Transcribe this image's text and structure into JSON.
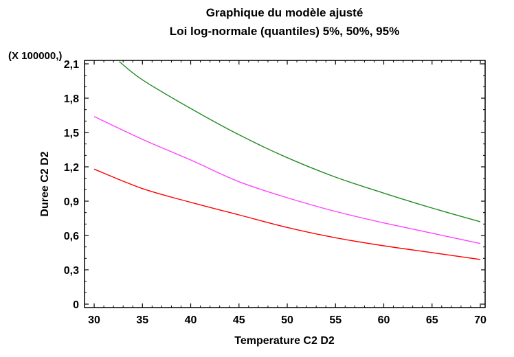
{
  "chart_data": {
    "type": "line",
    "title": "Graphique du modèle ajusté",
    "subtitle": "Loi log-normale (quantiles) 5%,  50%,  95%",
    "xlabel": "Temperature C2 D2",
    "ylabel": "Duree C2 D2",
    "y_multiplier_label": "(X 100000,)",
    "xlim": [
      29,
      70.5
    ],
    "ylim": [
      -0.03,
      2.13
    ],
    "x_ticks": [
      30,
      35,
      40,
      45,
      50,
      55,
      60,
      65,
      70
    ],
    "x_tick_labels": [
      "30",
      "35",
      "40",
      "45",
      "50",
      "55",
      "60",
      "65",
      "70"
    ],
    "y_ticks": [
      0,
      0.3,
      0.6,
      0.9,
      1.2,
      1.5,
      1.8,
      2.1
    ],
    "y_tick_labels": [
      "0",
      "0,3",
      "0,6",
      "0,9",
      "1,2",
      "1,5",
      "1,8",
      "2,1"
    ],
    "grid": false,
    "legend": "none",
    "series": [
      {
        "color": "#228b22",
        "x": [
          32.6,
          35,
          40,
          45,
          50,
          55,
          60,
          65,
          70
        ],
        "y": [
          2.12,
          1.96,
          1.71,
          1.48,
          1.28,
          1.11,
          0.97,
          0.84,
          0.72
        ]
      },
      {
        "color": "#ff40ff",
        "x": [
          30,
          35,
          40,
          45,
          50,
          55,
          60,
          65,
          70
        ],
        "y": [
          1.64,
          1.44,
          1.26,
          1.07,
          0.93,
          0.81,
          0.71,
          0.62,
          0.53
        ]
      },
      {
        "color": "#ff0000",
        "x": [
          30,
          35,
          40,
          45,
          50,
          55,
          60,
          65,
          70
        ],
        "y": [
          1.18,
          1.01,
          0.89,
          0.78,
          0.67,
          0.58,
          0.51,
          0.45,
          0.39
        ]
      }
    ]
  }
}
